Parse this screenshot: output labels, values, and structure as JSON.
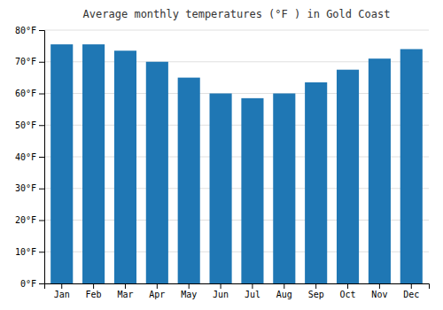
{
  "chart_data": {
    "type": "bar",
    "title": "Average monthly temperatures (°F ) in Gold Coast",
    "categories": [
      "Jan",
      "Feb",
      "Mar",
      "Apr",
      "May",
      "Jun",
      "Jul",
      "Aug",
      "Sep",
      "Oct",
      "Nov",
      "Dec"
    ],
    "values": [
      75.5,
      75.5,
      73.5,
      70.0,
      65.0,
      60.0,
      58.5,
      60.0,
      63.5,
      67.5,
      71.0,
      74.0
    ],
    "ylim": [
      0,
      80
    ],
    "yticks": [
      {
        "value": 0,
        "label": "0°F"
      },
      {
        "value": 10,
        "label": "10°F"
      },
      {
        "value": 20,
        "label": "20°F"
      },
      {
        "value": 30,
        "label": "30°F"
      },
      {
        "value": 40,
        "label": "40°F"
      },
      {
        "value": 50,
        "label": "50°F"
      },
      {
        "value": 60,
        "label": "60°F"
      },
      {
        "value": 70,
        "label": "70°F"
      },
      {
        "value": 80,
        "label": "80°F"
      }
    ],
    "grid": true
  }
}
